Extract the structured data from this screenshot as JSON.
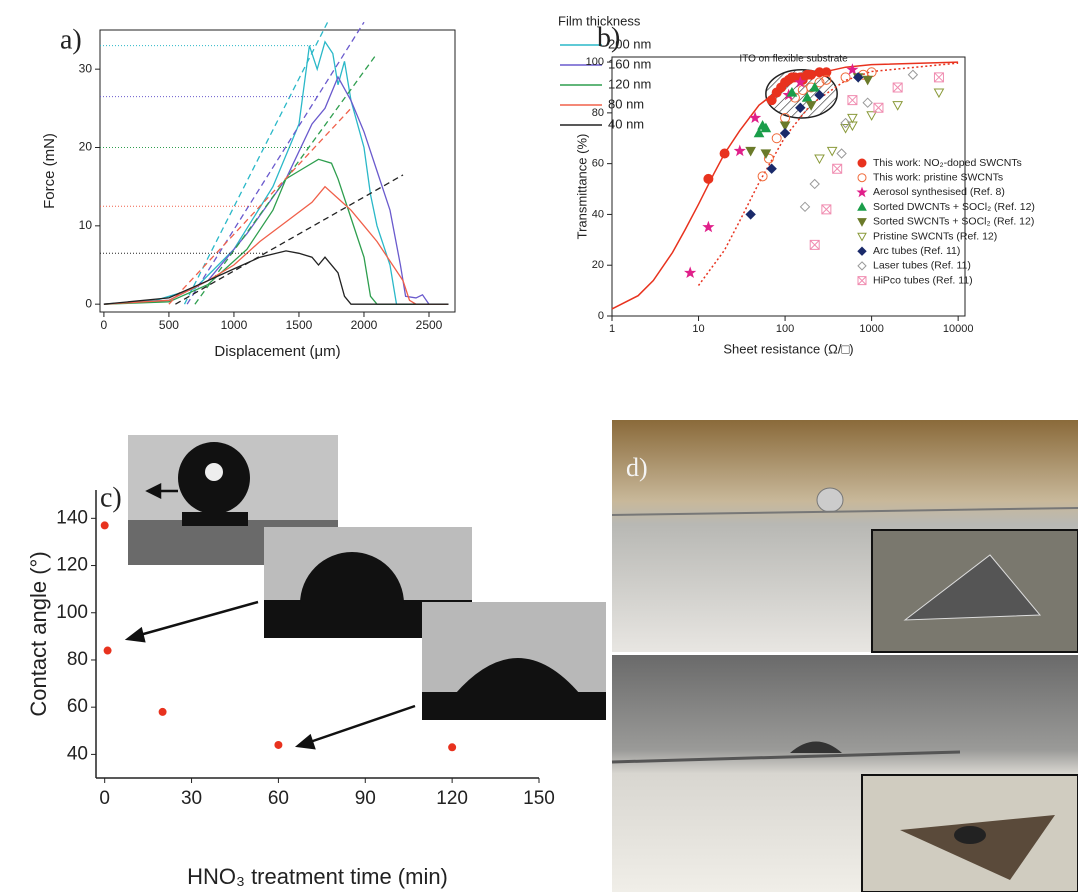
{
  "chart_data": [
    {
      "type": "line",
      "label": "a)",
      "x_label": "Displacement (μm)",
      "y_label": "Force (mN)",
      "legend_title": "Film thickness",
      "xlim": [
        -30,
        2700
      ],
      "ylim": [
        -1,
        35
      ],
      "xticks": [
        0,
        500,
        1000,
        1500,
        2000,
        2500
      ],
      "yticks": [
        0,
        10,
        20,
        30
      ],
      "series": [
        {
          "name": "200 nm",
          "color": "#2ab8c8",
          "x": [
            0,
            400,
            700,
            1000,
            1300,
            1500,
            1580,
            1640,
            1700,
            1760,
            1800,
            1850,
            1900,
            2000,
            2050,
            2100,
            2200,
            2250,
            2300,
            2650
          ],
          "y": [
            0,
            0.5,
            2,
            7,
            15,
            23,
            33,
            30,
            33.5,
            32,
            28,
            31,
            26,
            20,
            14,
            10,
            5,
            0,
            0,
            0
          ],
          "fit_x": [
            620,
            1720
          ],
          "fit_y": [
            0,
            36
          ],
          "plateau": 33
        },
        {
          "name": "160 nm",
          "color": "#6a5acd",
          "x": [
            0,
            500,
            800,
            1100,
            1400,
            1600,
            1700,
            1800,
            1900,
            2000,
            2100,
            2200,
            2280,
            2320,
            2400,
            2450,
            2500
          ],
          "y": [
            0,
            0.5,
            3,
            9,
            16,
            23,
            25,
            29,
            26,
            22,
            17,
            12,
            5,
            1,
            0.8,
            1.2,
            0
          ],
          "fit_x": [
            640,
            2000
          ],
          "fit_y": [
            0,
            36
          ],
          "plateau": 26.5
        },
        {
          "name": "120 nm",
          "color": "#2e9e4e",
          "x": [
            0,
            500,
            800,
            1100,
            1300,
            1400,
            1500,
            1650,
            1750,
            1800,
            1900,
            2000,
            2050,
            2100,
            2650
          ],
          "y": [
            0,
            0.3,
            2.5,
            7,
            12,
            16,
            17,
            18.5,
            18,
            16,
            11,
            6,
            1,
            0,
            0
          ],
          "fit_x": [
            700,
            2100
          ],
          "fit_y": [
            0,
            32
          ],
          "plateau": 20
        },
        {
          "name": "80 nm",
          "color": "#f0604a",
          "x": [
            0,
            500,
            800,
            1000,
            1200,
            1400,
            1600,
            1700,
            1800,
            1900,
            2000,
            2100,
            2200,
            2300,
            2350,
            2400,
            2650
          ],
          "y": [
            0,
            0.5,
            3,
            5,
            8,
            10.5,
            13,
            15,
            13.5,
            12,
            10,
            8,
            5.5,
            3,
            0.5,
            0,
            0
          ],
          "fit_x": [
            500,
            1900
          ],
          "fit_y": [
            0,
            25
          ],
          "plateau": 12.5
        },
        {
          "name": "40 nm",
          "color": "#222222",
          "x": [
            0,
            500,
            800,
            1000,
            1200,
            1400,
            1500,
            1600,
            1650,
            1700,
            1800,
            1850,
            1900,
            2650
          ],
          "y": [
            0,
            0.8,
            3,
            4.5,
            6,
            6.8,
            6.5,
            6,
            5,
            6,
            4,
            1,
            0,
            0
          ],
          "fit_x": [
            550,
            2300
          ],
          "fit_y": [
            0,
            16.5
          ],
          "plateau": 6.5
        }
      ]
    },
    {
      "type": "scatter",
      "label": "b)",
      "x_label": "Sheet resistance (Ω/□)",
      "y_label": "Transmittance (%)",
      "x_scale": "log",
      "xlim": [
        1,
        12000
      ],
      "ylim": [
        0,
        102
      ],
      "xticks": [
        1,
        10,
        100,
        1000,
        10000
      ],
      "yticks": [
        0,
        20,
        40,
        60,
        80,
        100
      ],
      "annotation": "ITO on flexible substrate",
      "region": {
        "x": [
          60,
          400
        ],
        "y": [
          78,
          97
        ]
      },
      "curves": [
        {
          "color": "#e8321e",
          "style": "solid",
          "x": [
            1,
            2,
            3,
            5,
            7,
            10,
            15,
            20,
            30,
            50,
            100,
            200,
            500,
            1000,
            10000
          ],
          "y": [
            2.8,
            8,
            14,
            25,
            34,
            44,
            56,
            64,
            73,
            83,
            91,
            95,
            98,
            99,
            100
          ]
        },
        {
          "color": "#e8321e",
          "style": "dotted",
          "x": [
            10,
            20,
            30,
            50,
            100,
            200,
            500,
            1000,
            10000
          ],
          "y": [
            12,
            26,
            37.5,
            52.5,
            70.6,
            83.4,
            92.8,
            96.3,
            99.6
          ]
        }
      ],
      "series": [
        {
          "name": "This work: NO₂-doped SWCNTs",
          "color": "#e8321e",
          "marker": "circle",
          "filled": true,
          "x": [
            13,
            20,
            70,
            80,
            90,
            100,
            110,
            120,
            130,
            150,
            160,
            180,
            200,
            250,
            300
          ],
          "y": [
            54,
            64,
            85,
            88,
            90,
            92,
            93,
            94,
            94,
            94,
            93,
            95,
            95,
            96,
            96
          ]
        },
        {
          "name": "This work: pristine SWCNTs",
          "color": "#f06a3a",
          "marker": "circle",
          "filled": false,
          "x": [
            55,
            65,
            80,
            100,
            130,
            160,
            200,
            250,
            300,
            500,
            800,
            1000
          ],
          "y": [
            55,
            62,
            70,
            78,
            86,
            89,
            90,
            92,
            93,
            94,
            95,
            96
          ]
        },
        {
          "name": "Aerosol synthesised (Ref. 8)",
          "color": "#e0208a",
          "marker": "star",
          "filled": true,
          "x": [
            8,
            13,
            30,
            45,
            110,
            150,
            600
          ],
          "y": [
            17,
            35,
            65,
            78,
            87,
            92,
            97
          ]
        },
        {
          "name": "Sorted DWCNTs + SOCl₂ (Ref. 12)",
          "color": "#1a9e4a",
          "marker": "triangle-up",
          "filled": true,
          "x": [
            50,
            55,
            60,
            120,
            180,
            220
          ],
          "y": [
            72,
            75,
            74,
            88,
            86,
            90
          ]
        },
        {
          "name": "Sorted SWCNTs + SOCl₂ (Ref. 12)",
          "color": "#6b7a2a",
          "marker": "triangle-down",
          "filled": true,
          "x": [
            40,
            60,
            100,
            200,
            700,
            900
          ],
          "y": [
            65,
            64,
            75,
            83,
            94,
            93
          ]
        },
        {
          "name": "Pristine SWCNTs (Ref. 12)",
          "color": "#8a9a3a",
          "marker": "triangle-down",
          "filled": false,
          "x": [
            250,
            350,
            500,
            600,
            600,
            1000,
            2000,
            6000
          ],
          "y": [
            62,
            65,
            74,
            78,
            75,
            79,
            83,
            88
          ]
        },
        {
          "name": "Arc tubes (Ref. 11)",
          "color": "#1a2a6a",
          "marker": "diamond",
          "filled": true,
          "x": [
            40,
            70,
            100,
            150,
            250,
            700
          ],
          "y": [
            40,
            58,
            72,
            82,
            87,
            94
          ]
        },
        {
          "name": "Laser tubes (Ref. 11)",
          "color": "#999999",
          "marker": "diamond",
          "filled": false,
          "x": [
            170,
            220,
            450,
            500,
            900,
            3000
          ],
          "y": [
            43,
            52,
            64,
            76,
            84,
            95
          ]
        },
        {
          "name": "HiPco tubes (Ref. 11)",
          "color": "#f08cb0",
          "marker": "square-x",
          "filled": false,
          "x": [
            220,
            300,
            400,
            600,
            1200,
            2000,
            6000
          ],
          "y": [
            28,
            42,
            58,
            85,
            82,
            90,
            94
          ]
        }
      ]
    },
    {
      "type": "scatter",
      "label": "c)",
      "x_label": "HNO₃ treatment time (min)",
      "y_label": "Contact angle (°)",
      "xlim": [
        -3,
        150
      ],
      "ylim": [
        30,
        152
      ],
      "xticks": [
        0,
        30,
        60,
        90,
        120,
        150
      ],
      "yticks": [
        40,
        60,
        80,
        100,
        120,
        140
      ],
      "color": "#e8321e",
      "x": [
        0,
        1,
        20,
        60,
        120
      ],
      "values": [
        137,
        84,
        58,
        44,
        43
      ]
    }
  ],
  "photo_panel": {
    "label": "d)"
  }
}
